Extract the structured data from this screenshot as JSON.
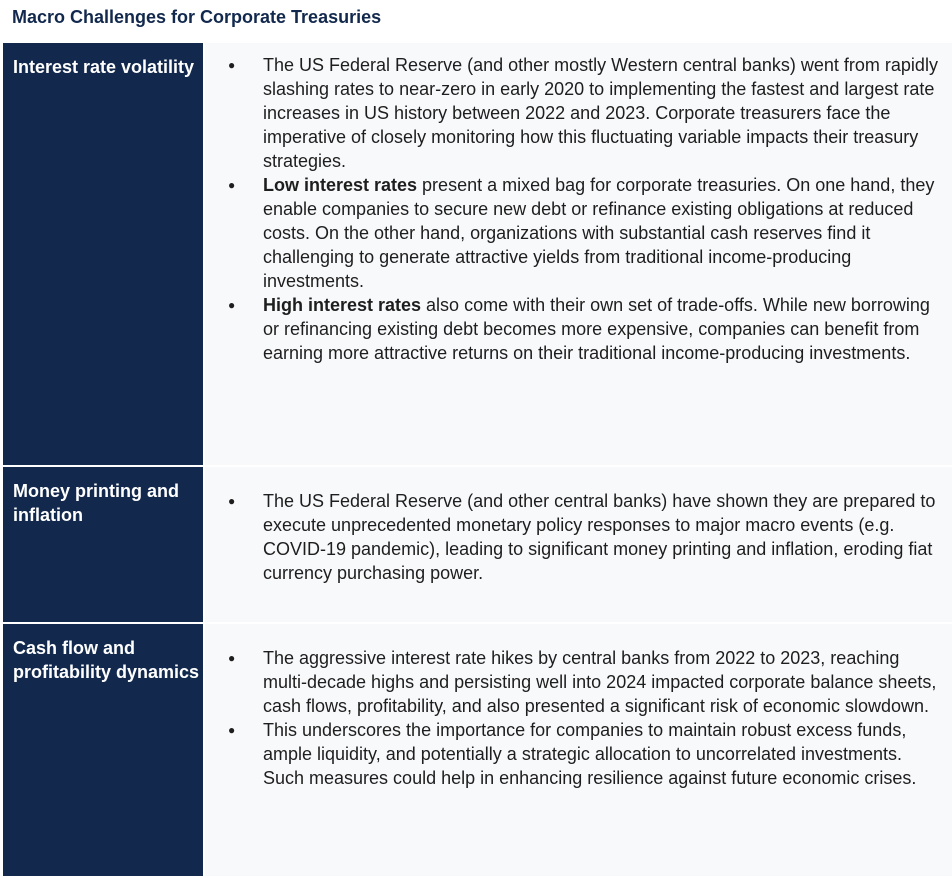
{
  "title": "Macro Challenges for Corporate Treasuries",
  "colors": {
    "label_bg": "#12294d",
    "content_bg": "#f8f9fb",
    "title": "#12294d"
  },
  "rows": [
    {
      "label": "Interest rate volatility",
      "bullets": [
        {
          "bold": "",
          "text": "The US Federal Reserve (and other mostly Western central banks) went from rapidly slashing rates to near-zero in early 2020 to implementing the fastest and largest rate increases in US history between 2022 and 2023. Corporate treasurers face the imperative of closely monitoring how this fluctuating variable impacts their treasury strategies."
        },
        {
          "bold": "Low interest rates",
          "text": " present a mixed bag for corporate treasuries. On one hand, they enable companies to secure new debt or refinance existing obligations at reduced costs. On the other hand, organizations with substantial cash reserves find it challenging to generate attractive yields from traditional income-producing investments."
        },
        {
          "bold": "High interest rates",
          "text": " also come with their own set of trade-offs. While new borrowing or refinancing existing debt becomes more expensive, companies can benefit from earning more attractive returns on their traditional income-producing investments."
        }
      ]
    },
    {
      "label": "Money printing and inflation",
      "bullets": [
        {
          "bold": "",
          "text": "The US Federal Reserve (and other central banks) have shown they are prepared to execute unprecedented monetary policy responses to major macro events (e.g. COVID-19 pandemic), leading to significant money printing and inflation, eroding fiat currency purchasing power."
        }
      ]
    },
    {
      "label": "Cash flow and profitability dynamics",
      "bullets": [
        {
          "bold": "",
          "text": "The aggressive interest rate hikes by central banks from 2022 to 2023, reaching multi-decade highs and persisting well into 2024 impacted corporate balance sheets, cash flows, profitability, and also presented a significant risk of economic slowdown."
        },
        {
          "bold": "",
          "text": "This underscores the importance for companies to maintain robust excess funds, ample liquidity, and potentially a strategic allocation to uncorrelated investments. Such measures could help in enhancing resilience against future economic crises."
        }
      ]
    }
  ]
}
